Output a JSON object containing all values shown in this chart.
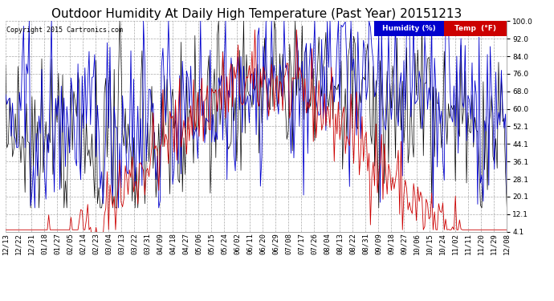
{
  "title": "Outdoor Humidity At Daily High Temperature (Past Year) 20151213",
  "copyright": "Copyright 2015 Cartronics.com",
  "legend_humidity_label": "Humidity (%)",
  "legend_temp_label": "Temp  (°F)",
  "legend_humidity_bg": "#0000cd",
  "legend_temp_bg": "#cc0000",
  "humidity_color": "#0000cd",
  "temp_color": "#cc0000",
  "black_color": "#000000",
  "ylim": [
    4.1,
    100.0
  ],
  "yticks": [
    4.1,
    12.1,
    20.1,
    28.1,
    36.1,
    44.1,
    52.1,
    60.0,
    68.0,
    76.0,
    84.0,
    92.0,
    100.0
  ],
  "bg_color": "#ffffff",
  "grid_color": "#aaaaaa",
  "title_fontsize": 11,
  "tick_fontsize": 6.5,
  "x_tick_labels": [
    "12/13",
    "12/22",
    "12/31",
    "01/18",
    "01/27",
    "02/05",
    "02/14",
    "02/23",
    "03/04",
    "03/13",
    "03/22",
    "03/31",
    "04/09",
    "04/18",
    "04/27",
    "05/06",
    "05/15",
    "05/24",
    "06/02",
    "06/11",
    "06/20",
    "06/29",
    "07/08",
    "07/17",
    "07/26",
    "08/04",
    "08/13",
    "08/22",
    "08/31",
    "09/09",
    "09/18",
    "09/27",
    "10/06",
    "10/15",
    "10/24",
    "11/02",
    "11/11",
    "11/20",
    "11/29",
    "12/08"
  ],
  "n_days": 361,
  "seed": 42
}
